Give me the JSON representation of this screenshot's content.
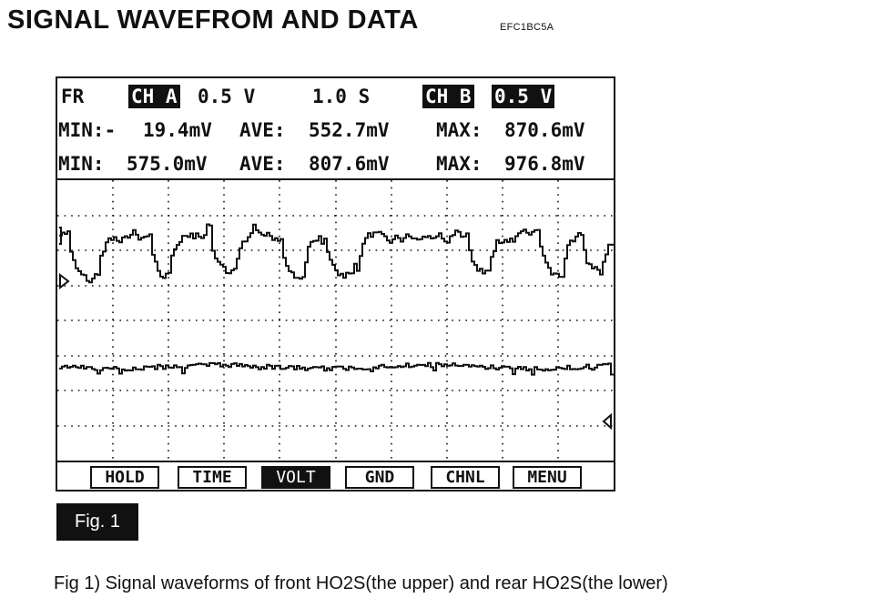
{
  "header": {
    "title": "SIGNAL WAVEFROM AND DATA",
    "code": "EFC1BC5A"
  },
  "scope": {
    "row1": {
      "mode": "FR",
      "ch_a_label": "CH A",
      "ch_a_scale": "0.5 V",
      "time_scale": "1.0 S",
      "ch_b_label": "CH B",
      "ch_b_scale": "0.5 V"
    },
    "row2": {
      "min_label": "MIN:-",
      "min_value": "19.4mV",
      "ave_label": "AVE:",
      "ave_value": "552.7mV",
      "max_label": "MAX:",
      "max_value": "870.6mV"
    },
    "row3": {
      "min_label": "MIN:",
      "min_value": "575.0mV",
      "ave_label": "AVE:",
      "ave_value": "807.6mV",
      "max_label": "MAX:",
      "max_value": "976.8mV"
    },
    "softkeys": [
      {
        "label": "HOLD",
        "active": false
      },
      {
        "label": "TIME",
        "active": false
      },
      {
        "label": "VOLT",
        "active": true
      },
      {
        "label": "GND",
        "active": false
      },
      {
        "label": "CHNL",
        "active": false
      },
      {
        "label": "MENU",
        "active": false
      }
    ]
  },
  "figure": {
    "badge": "Fig. 1",
    "caption": "Fig 1) Signal waveforms of front HO2S(the upper) and rear HO2S(the lower)"
  },
  "colors": {
    "ink": "#111111",
    "paper": "#ffffff"
  }
}
